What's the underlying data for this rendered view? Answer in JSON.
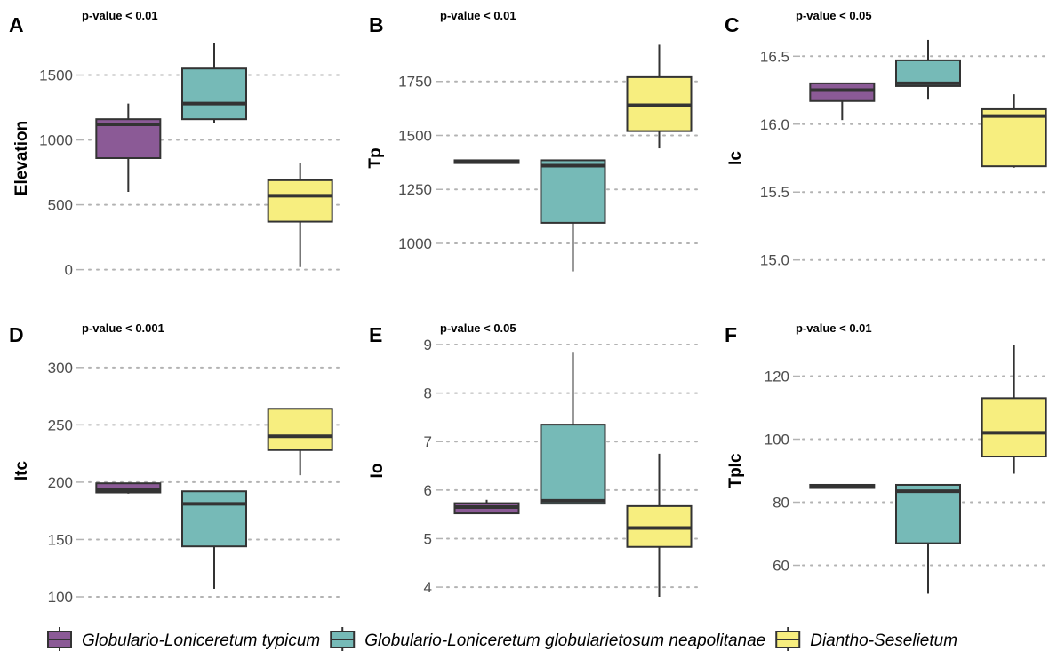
{
  "colors": {
    "Globulario-Loniceretum typicum": "#8b5a96",
    "Globulario-Loniceretum globularietosum neapolitanae": "#76bab7",
    "Diantho-Seselietum": "#f7ee7f",
    "outline": "#333333",
    "grid": "#b3b3b3"
  },
  "legend": {
    "position": "bottom",
    "items": [
      "Globulario-Loniceretum typicum",
      "Globulario-Loniceretum globularietosum neapolitanae",
      "Diantho-Seselietum"
    ]
  },
  "chart_data": [
    {
      "type": "boxplot",
      "panel": "A",
      "annotation": "p-value < 0.01",
      "ylabel": "Elevation",
      "ylim": [
        -30,
        1750
      ],
      "yticks": [
        0,
        500,
        1000,
        1500
      ],
      "grid": "horizontal dotted",
      "categories": [
        "Globulario-Loniceretum typicum",
        "Globulario-Loniceretum globularietosum neapolitanae",
        "Diantho-Seselietum"
      ],
      "boxes": [
        {
          "min": 600,
          "q1": 860,
          "median": 1120,
          "q3": 1160,
          "max": 1280
        },
        {
          "min": 1130,
          "q1": 1160,
          "median": 1280,
          "q3": 1550,
          "max": 1750
        },
        {
          "min": 20,
          "q1": 370,
          "median": 570,
          "q3": 690,
          "max": 820
        }
      ]
    },
    {
      "type": "boxplot",
      "panel": "B",
      "annotation": "p-value < 0.01",
      "ylabel": "Tp",
      "ylim": [
        860,
        1930
      ],
      "yticks": [
        1000,
        1250,
        1500,
        1750
      ],
      "grid": "horizontal dotted",
      "categories": [
        "Globulario-Loniceretum typicum",
        "Globulario-Loniceretum globularietosum neapolitanae",
        "Diantho-Seselietum"
      ],
      "boxes": [
        {
          "min": 1370,
          "q1": 1372,
          "median": 1378,
          "q3": 1385,
          "max": 1385
        },
        {
          "min": 870,
          "q1": 1095,
          "median": 1360,
          "q3": 1385,
          "max": 1385
        },
        {
          "min": 1440,
          "q1": 1520,
          "median": 1640,
          "q3": 1770,
          "max": 1920
        }
      ]
    },
    {
      "type": "boxplot",
      "panel": "C",
      "annotation": "p-value < 0.05",
      "ylabel": "Ic",
      "ylim": [
        14.9,
        16.6
      ],
      "yticks": [
        15.0,
        15.5,
        16.0,
        16.5
      ],
      "grid": "horizontal dotted",
      "categories": [
        "Globulario-Loniceretum typicum",
        "Globulario-Loniceretum globularietosum neapolitanae",
        "Diantho-Seselietum"
      ],
      "boxes": [
        {
          "min": 16.03,
          "q1": 16.17,
          "median": 16.25,
          "q3": 16.3,
          "max": 16.3
        },
        {
          "min": 16.18,
          "q1": 16.28,
          "median": 16.3,
          "q3": 16.47,
          "max": 16.62
        },
        {
          "min": 15.68,
          "q1": 15.69,
          "median": 16.06,
          "q3": 16.11,
          "max": 16.22
        }
      ]
    },
    {
      "type": "boxplot",
      "panel": "D",
      "annotation": "p-value < 0.001",
      "ylabel": "Itc",
      "ylim": [
        100,
        320
      ],
      "yticks": [
        100,
        150,
        200,
        250,
        300
      ],
      "grid": "horizontal dotted",
      "categories": [
        "Globulario-Loniceretum typicum",
        "Globulario-Loniceretum globularietosum neapolitanae",
        "Diantho-Seselietum"
      ],
      "boxes": [
        {
          "min": 190,
          "q1": 191,
          "median": 193,
          "q3": 199,
          "max": 199
        },
        {
          "min": 107,
          "q1": 144,
          "median": 181,
          "q3": 192,
          "max": 192
        },
        {
          "min": 206,
          "q1": 228,
          "median": 240,
          "q3": 264,
          "max": 264
        }
      ]
    },
    {
      "type": "boxplot",
      "panel": "E",
      "annotation": "p-value < 0.05",
      "ylabel": "Io",
      "ylim": [
        3.8,
        9.0
      ],
      "yticks": [
        4,
        5,
        6,
        7,
        8,
        9
      ],
      "grid": "horizontal dotted",
      "categories": [
        "Globulario-Loniceretum typicum",
        "Globulario-Loniceretum globularietosum neapolitanae",
        "Diantho-Seselietum"
      ],
      "boxes": [
        {
          "min": 5.52,
          "q1": 5.52,
          "median": 5.65,
          "q3": 5.73,
          "max": 5.8
        },
        {
          "min": 5.72,
          "q1": 5.72,
          "median": 5.78,
          "q3": 7.35,
          "max": 8.85
        },
        {
          "min": 3.8,
          "q1": 4.83,
          "median": 5.22,
          "q3": 5.67,
          "max": 6.75
        }
      ]
    },
    {
      "type": "boxplot",
      "panel": "F",
      "annotation": "p-value < 0.01",
      "ylabel": "TpIc",
      "ylim": [
        50,
        130
      ],
      "yticks": [
        60,
        80,
        100,
        120
      ],
      "grid": "horizontal dotted",
      "categories": [
        "Globulario-Loniceretum typicum",
        "Globulario-Loniceretum globularietosum neapolitanae",
        "Diantho-Seselietum"
      ],
      "boxes": [
        {
          "min": 84.5,
          "q1": 84.5,
          "median": 85,
          "q3": 85.5,
          "max": 85.5
        },
        {
          "min": 51,
          "q1": 67,
          "median": 83.5,
          "q3": 85.5,
          "max": 85.5
        },
        {
          "min": 89,
          "q1": 94.5,
          "median": 102,
          "q3": 113,
          "max": 130
        }
      ]
    }
  ]
}
